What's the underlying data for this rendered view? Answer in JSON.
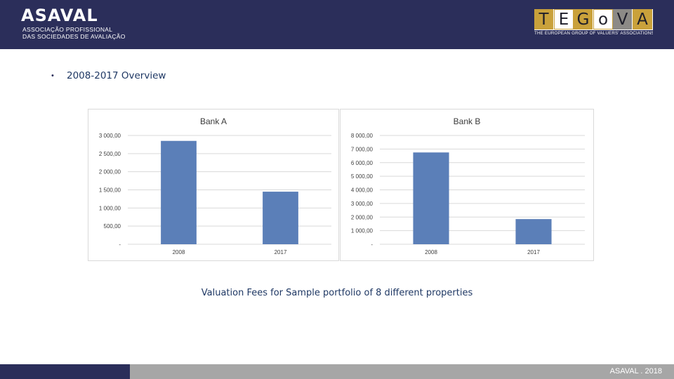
{
  "header": {
    "asaval_logo": {
      "wordmark": "ASAVAL",
      "line1": "ASSOCIAÇÃO PROFISSIONAL",
      "line2": "DAS SOCIEDADES DE AVALIAÇÃO"
    },
    "tegova_logo": {
      "letters": [
        "T",
        "E",
        "G",
        "o",
        "V",
        "A"
      ],
      "tagline": "THE EUROPEAN GROUP OF VALUERS' ASSOCIATIONS"
    },
    "background_color": "#2b2e5a"
  },
  "heading": {
    "bullet": "•",
    "text": "2008-2017 Overview"
  },
  "chart_data": [
    {
      "type": "bar",
      "title": "Bank A",
      "categories": [
        "2008",
        "2017"
      ],
      "values": [
        2850,
        1450
      ],
      "ylim": [
        0,
        3000
      ],
      "yticks": [
        0,
        500,
        1000,
        1500,
        2000,
        2500,
        3000
      ],
      "ytick_labels": [
        "-",
        "500,00",
        "1 000,00",
        "1 500,00",
        "2 000,00",
        "2 500,00",
        "3 000,00"
      ],
      "grid": true,
      "bar_color": "#5b7fb8"
    },
    {
      "type": "bar",
      "title": "Bank B",
      "categories": [
        "2008",
        "2017"
      ],
      "values": [
        6750,
        1850
      ],
      "ylim": [
        0,
        8000
      ],
      "yticks": [
        0,
        1000,
        2000,
        3000,
        4000,
        5000,
        6000,
        7000,
        8000
      ],
      "ytick_labels": [
        "-",
        "1 000,00",
        "2 000,00",
        "3 000,00",
        "4 000,00",
        "5 000,00",
        "6 000,00",
        "7 000,00",
        "8 000,00"
      ],
      "grid": true,
      "bar_color": "#5b7fb8"
    }
  ],
  "caption": "Valuation Fees for Sample portfolio of 8 different properties",
  "footer": {
    "text": "ASAVAL . 2018"
  }
}
